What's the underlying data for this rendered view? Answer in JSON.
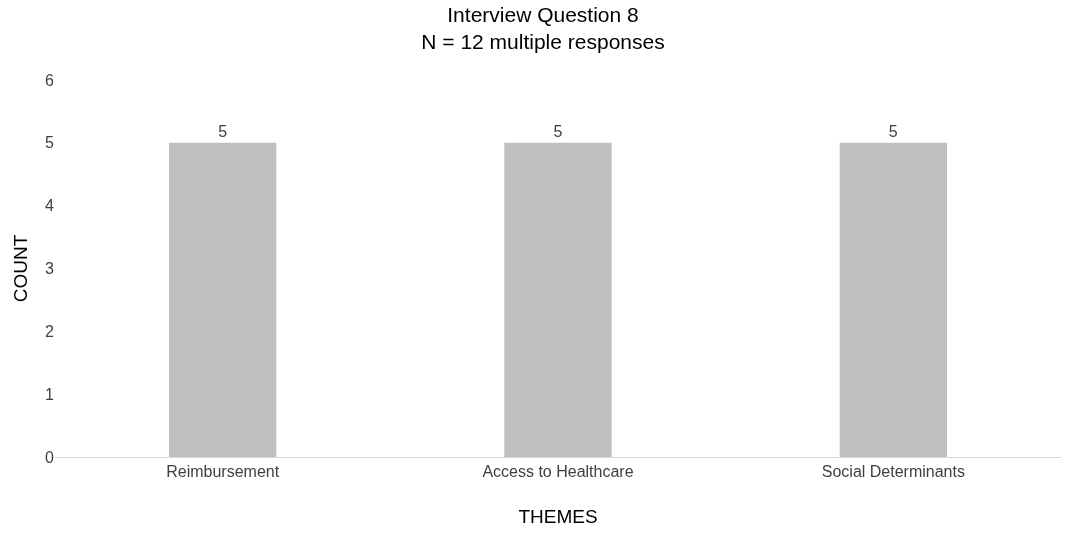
{
  "chart_data": {
    "type": "bar",
    "title": "Interview Question 8",
    "subtitle": "N = 12 multiple responses",
    "xlabel": "THEMES",
    "ylabel": "COUNT",
    "categories": [
      "Reimbursement",
      "Access to Healthcare",
      "Social Determinants"
    ],
    "values": [
      5,
      5,
      5
    ],
    "color": "#bfbfbf",
    "ylim": [
      0,
      6
    ],
    "yticks": [
      0,
      1,
      2,
      3,
      4,
      5,
      6
    ],
    "grid": false,
    "legend": false,
    "data_labels": true
  }
}
